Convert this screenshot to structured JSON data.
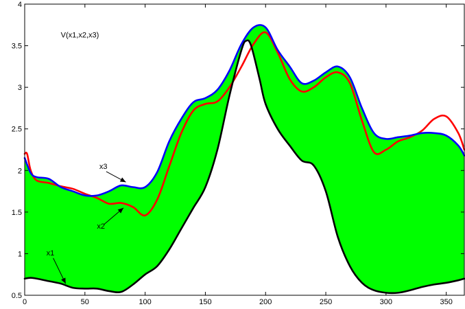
{
  "chart_data": {
    "type": "area",
    "title": "",
    "xlabel": "",
    "ylabel": "",
    "xlim": [
      0,
      365
    ],
    "ylim": [
      0.5,
      4
    ],
    "grid": false,
    "x_ticks": [
      "0",
      "50",
      "100",
      "150",
      "200",
      "250",
      "300",
      "350"
    ],
    "y_ticks": [
      "0.5",
      "1",
      "1.5",
      "2",
      "2.5",
      "3",
      "3.5",
      "4"
    ],
    "fill_color": "#00ff00",
    "fill_between": [
      "x1",
      "x3"
    ],
    "annotations": [
      {
        "text": "V(x1,x2,x3)",
        "x": 30,
        "y": 3.6
      },
      {
        "text": "x3",
        "x": 62,
        "y": 2.02,
        "arrow_to": [
          84,
          1.86
        ]
      },
      {
        "text": "x2",
        "x": 60,
        "y": 1.3,
        "arrow_to": [
          82,
          1.55
        ]
      },
      {
        "text": "x1",
        "x": 18,
        "y": 0.98,
        "arrow_to": [
          34,
          0.64
        ]
      }
    ],
    "series": [
      {
        "name": "x1",
        "color": "#000000",
        "x": [
          0,
          5,
          10,
          20,
          30,
          40,
          50,
          60,
          70,
          80,
          90,
          100,
          110,
          120,
          130,
          140,
          150,
          160,
          170,
          180,
          184,
          188,
          195,
          200,
          210,
          220,
          230,
          240,
          250,
          260,
          270,
          280,
          290,
          300,
          310,
          320,
          330,
          340,
          350,
          360,
          365
        ],
        "y": [
          0.7,
          0.71,
          0.7,
          0.67,
          0.64,
          0.59,
          0.58,
          0.58,
          0.55,
          0.54,
          0.63,
          0.75,
          0.85,
          1.05,
          1.3,
          1.55,
          1.8,
          2.25,
          2.9,
          3.45,
          3.56,
          3.5,
          3.1,
          2.8,
          2.5,
          2.3,
          2.12,
          2.06,
          1.75,
          1.2,
          0.85,
          0.65,
          0.56,
          0.53,
          0.53,
          0.56,
          0.6,
          0.63,
          0.65,
          0.68,
          0.7
        ]
      },
      {
        "name": "x2",
        "color": "#ff0000",
        "x": [
          0,
          2,
          5,
          10,
          20,
          30,
          40,
          50,
          60,
          70,
          80,
          90,
          100,
          110,
          120,
          130,
          140,
          150,
          160,
          170,
          180,
          190,
          200,
          210,
          220,
          230,
          240,
          250,
          260,
          270,
          280,
          290,
          300,
          310,
          320,
          330,
          340,
          350,
          360,
          365
        ],
        "y": [
          2.2,
          2.2,
          2.0,
          1.88,
          1.85,
          1.81,
          1.78,
          1.72,
          1.67,
          1.6,
          1.61,
          1.56,
          1.46,
          1.65,
          2.05,
          2.45,
          2.72,
          2.8,
          2.83,
          3.0,
          3.25,
          3.52,
          3.66,
          3.42,
          3.1,
          2.95,
          3.0,
          3.12,
          3.18,
          3.05,
          2.6,
          2.22,
          2.25,
          2.35,
          2.4,
          2.48,
          2.62,
          2.65,
          2.45,
          2.25
        ]
      },
      {
        "name": "x3",
        "color": "#0000ff",
        "x": [
          0,
          5,
          10,
          20,
          30,
          40,
          50,
          60,
          70,
          80,
          90,
          100,
          110,
          120,
          130,
          140,
          150,
          160,
          170,
          180,
          190,
          200,
          210,
          220,
          230,
          240,
          250,
          260,
          270,
          280,
          290,
          300,
          310,
          320,
          330,
          340,
          350,
          360,
          365
        ],
        "y": [
          2.15,
          1.97,
          1.92,
          1.9,
          1.8,
          1.75,
          1.7,
          1.7,
          1.75,
          1.82,
          1.8,
          1.8,
          1.98,
          2.35,
          2.62,
          2.82,
          2.87,
          2.97,
          3.2,
          3.52,
          3.72,
          3.72,
          3.45,
          3.25,
          3.05,
          3.08,
          3.18,
          3.25,
          3.12,
          2.75,
          2.45,
          2.38,
          2.4,
          2.42,
          2.45,
          2.45,
          2.42,
          2.3,
          2.18
        ]
      }
    ]
  }
}
